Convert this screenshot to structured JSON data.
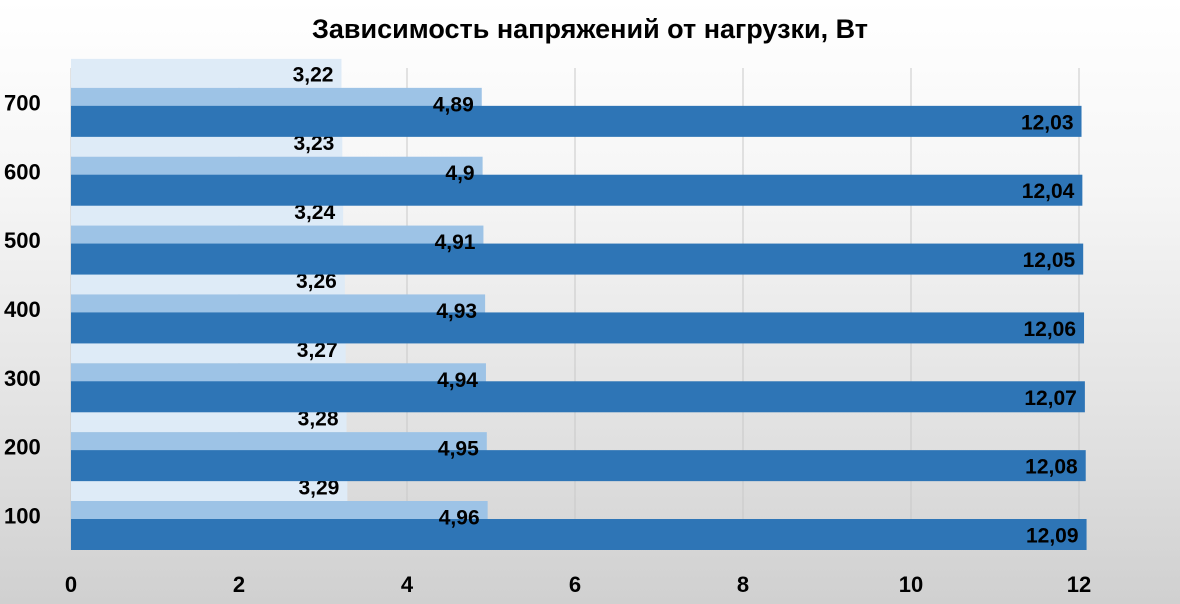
{
  "chart_data": {
    "type": "bar",
    "orientation": "horizontal",
    "title": "Зависимость напряжений от нагрузки, Вт",
    "xlabel": "",
    "ylabel": "",
    "xlim": [
      0,
      12
    ],
    "x_ticks": [
      0,
      2,
      4,
      6,
      8,
      10,
      12
    ],
    "grid": "vertical",
    "legend": "none",
    "categories": [
      "100",
      "200",
      "300",
      "400",
      "500",
      "600",
      "700"
    ],
    "series": [
      {
        "values": [
          12.09,
          12.08,
          12.07,
          12.06,
          12.05,
          12.04,
          12.03
        ],
        "labels": [
          "12,09",
          "12,08",
          "12,07",
          "12,06",
          "12,05",
          "12,04",
          "12,03"
        ],
        "color": "#2e75b6"
      },
      {
        "values": [
          4.96,
          4.95,
          4.94,
          4.93,
          4.91,
          4.9,
          4.89
        ],
        "labels": [
          "4,96",
          "4,95",
          "4,94",
          "4,93",
          "4,91",
          "4,9",
          "4,89"
        ],
        "color": "#9dc3e6"
      },
      {
        "values": [
          3.29,
          3.28,
          3.27,
          3.26,
          3.24,
          3.23,
          3.22
        ],
        "labels": [
          "3,29",
          "3,28",
          "3,27",
          "3,26",
          "3,24",
          "3,23",
          "3,22"
        ],
        "color": "#deebf7"
      }
    ]
  }
}
